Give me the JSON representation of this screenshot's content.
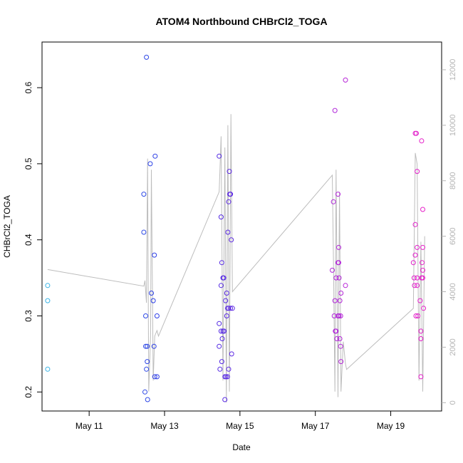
{
  "chart_data": {
    "type": "scatter",
    "title": "ATOM4 Northbound CHBrCl2_TOGA",
    "xlabel": "Date",
    "ylabel": "CHBrCl2_TOGA",
    "xlim": [
      9.75,
      20.35
    ],
    "ylim": [
      0.175,
      0.66
    ],
    "y2lim": [
      -300,
      13000
    ],
    "x_ticks": [
      {
        "value": 11,
        "label": "May 11"
      },
      {
        "value": 13,
        "label": "May 13"
      },
      {
        "value": 15,
        "label": "May 15"
      },
      {
        "value": 17,
        "label": "May 17"
      },
      {
        "value": 19,
        "label": "May 19"
      }
    ],
    "y_ticks": [
      {
        "value": 0.2,
        "label": "0.2"
      },
      {
        "value": 0.3,
        "label": "0.3"
      },
      {
        "value": 0.4,
        "label": "0.4"
      },
      {
        "value": 0.5,
        "label": "0.5"
      },
      {
        "value": 0.6,
        "label": "0.6"
      }
    ],
    "y2_ticks": [
      {
        "value": 0,
        "label": "0"
      },
      {
        "value": 2000,
        "label": "2000"
      },
      {
        "value": 4000,
        "label": "4000"
      },
      {
        "value": 6000,
        "label": "6000"
      },
      {
        "value": 8000,
        "label": "8000"
      },
      {
        "value": 10000,
        "label": "10000"
      },
      {
        "value": 12000,
        "label": "12000"
      }
    ],
    "colors": {
      "start": "#3ab4e6",
      "mid": "#2a2ae6",
      "late": "#9a2ae0",
      "end": "#e61ec8",
      "altitude_line": "#bdbdbd",
      "axis": "#000000",
      "right_axis": "#b3b3b3"
    },
    "points": [
      {
        "x": 9.9,
        "y": 0.34
      },
      {
        "x": 9.9,
        "y": 0.32
      },
      {
        "x": 9.9,
        "y": 0.23
      },
      {
        "x": 12.45,
        "y": 0.46
      },
      {
        "x": 12.45,
        "y": 0.41
      },
      {
        "x": 12.48,
        "y": 0.2
      },
      {
        "x": 12.5,
        "y": 0.3
      },
      {
        "x": 12.5,
        "y": 0.26
      },
      {
        "x": 12.52,
        "y": 0.23
      },
      {
        "x": 12.52,
        "y": 0.64
      },
      {
        "x": 12.54,
        "y": 0.26
      },
      {
        "x": 12.54,
        "y": 0.24
      },
      {
        "x": 12.55,
        "y": 0.19
      },
      {
        "x": 12.62,
        "y": 0.5
      },
      {
        "x": 12.65,
        "y": 0.33
      },
      {
        "x": 12.7,
        "y": 0.32
      },
      {
        "x": 12.72,
        "y": 0.26
      },
      {
        "x": 12.73,
        "y": 0.38
      },
      {
        "x": 12.75,
        "y": 0.51
      },
      {
        "x": 12.74,
        "y": 0.22
      },
      {
        "x": 12.8,
        "y": 0.22
      },
      {
        "x": 12.8,
        "y": 0.3
      },
      {
        "x": 14.45,
        "y": 0.51
      },
      {
        "x": 14.45,
        "y": 0.29
      },
      {
        "x": 14.45,
        "y": 0.26
      },
      {
        "x": 14.47,
        "y": 0.23
      },
      {
        "x": 14.5,
        "y": 0.43
      },
      {
        "x": 14.5,
        "y": 0.34
      },
      {
        "x": 14.5,
        "y": 0.28
      },
      {
        "x": 14.52,
        "y": 0.24
      },
      {
        "x": 14.52,
        "y": 0.37
      },
      {
        "x": 14.53,
        "y": 0.27
      },
      {
        "x": 14.55,
        "y": 0.35
      },
      {
        "x": 14.55,
        "y": 0.28
      },
      {
        "x": 14.57,
        "y": 0.35
      },
      {
        "x": 14.58,
        "y": 0.28
      },
      {
        "x": 14.6,
        "y": 0.22
      },
      {
        "x": 14.6,
        "y": 0.19
      },
      {
        "x": 14.62,
        "y": 0.32
      },
      {
        "x": 14.63,
        "y": 0.22
      },
      {
        "x": 14.65,
        "y": 0.33
      },
      {
        "x": 14.65,
        "y": 0.3
      },
      {
        "x": 14.67,
        "y": 0.31
      },
      {
        "x": 14.67,
        "y": 0.22
      },
      {
        "x": 14.68,
        "y": 0.41
      },
      {
        "x": 14.7,
        "y": 0.45
      },
      {
        "x": 14.7,
        "y": 0.31
      },
      {
        "x": 14.7,
        "y": 0.23
      },
      {
        "x": 14.72,
        "y": 0.49
      },
      {
        "x": 14.73,
        "y": 0.46
      },
      {
        "x": 14.75,
        "y": 0.46
      },
      {
        "x": 14.75,
        "y": 0.31
      },
      {
        "x": 14.77,
        "y": 0.4
      },
      {
        "x": 14.78,
        "y": 0.25
      },
      {
        "x": 14.8,
        "y": 0.31
      },
      {
        "x": 17.45,
        "y": 0.36
      },
      {
        "x": 17.48,
        "y": 0.45
      },
      {
        "x": 17.5,
        "y": 0.3
      },
      {
        "x": 17.52,
        "y": 0.57
      },
      {
        "x": 17.52,
        "y": 0.32
      },
      {
        "x": 17.53,
        "y": 0.28
      },
      {
        "x": 17.55,
        "y": 0.35
      },
      {
        "x": 17.55,
        "y": 0.28
      },
      {
        "x": 17.57,
        "y": 0.27
      },
      {
        "x": 17.6,
        "y": 0.46
      },
      {
        "x": 17.6,
        "y": 0.37
      },
      {
        "x": 17.6,
        "y": 0.3
      },
      {
        "x": 17.62,
        "y": 0.39
      },
      {
        "x": 17.62,
        "y": 0.37
      },
      {
        "x": 17.63,
        "y": 0.35
      },
      {
        "x": 17.63,
        "y": 0.3
      },
      {
        "x": 17.65,
        "y": 0.27
      },
      {
        "x": 17.65,
        "y": 0.32
      },
      {
        "x": 17.67,
        "y": 0.3
      },
      {
        "x": 17.67,
        "y": 0.26
      },
      {
        "x": 17.68,
        "y": 0.33
      },
      {
        "x": 17.68,
        "y": 0.24
      },
      {
        "x": 17.8,
        "y": 0.61
      },
      {
        "x": 17.8,
        "y": 0.34
      },
      {
        "x": 19.6,
        "y": 0.37
      },
      {
        "x": 19.62,
        "y": 0.35
      },
      {
        "x": 19.63,
        "y": 0.34
      },
      {
        "x": 19.65,
        "y": 0.54
      },
      {
        "x": 19.65,
        "y": 0.42
      },
      {
        "x": 19.65,
        "y": 0.38
      },
      {
        "x": 19.67,
        "y": 0.3
      },
      {
        "x": 19.68,
        "y": 0.54
      },
      {
        "x": 19.7,
        "y": 0.49
      },
      {
        "x": 19.7,
        "y": 0.39
      },
      {
        "x": 19.7,
        "y": 0.35
      },
      {
        "x": 19.7,
        "y": 0.34
      },
      {
        "x": 19.72,
        "y": 0.3
      },
      {
        "x": 19.78,
        "y": 0.32
      },
      {
        "x": 19.8,
        "y": 0.28
      },
      {
        "x": 19.8,
        "y": 0.27
      },
      {
        "x": 19.8,
        "y": 0.22
      },
      {
        "x": 19.82,
        "y": 0.53
      },
      {
        "x": 19.82,
        "y": 0.35
      },
      {
        "x": 19.83,
        "y": 0.37
      },
      {
        "x": 19.85,
        "y": 0.44
      },
      {
        "x": 19.85,
        "y": 0.39
      },
      {
        "x": 19.85,
        "y": 0.36
      },
      {
        "x": 19.85,
        "y": 0.35
      },
      {
        "x": 19.87,
        "y": 0.31
      }
    ],
    "altitude_line": [
      {
        "x": 9.9,
        "y2": 4800
      },
      {
        "x": 12.45,
        "y2": 4200
      },
      {
        "x": 12.48,
        "y2": 4400
      },
      {
        "x": 12.52,
        "y2": 3600
      },
      {
        "x": 12.55,
        "y2": 8800
      },
      {
        "x": 12.58,
        "y2": 400
      },
      {
        "x": 12.63,
        "y2": 2400
      },
      {
        "x": 12.65,
        "y2": 8400
      },
      {
        "x": 12.7,
        "y2": 800
      },
      {
        "x": 12.74,
        "y2": 2400
      },
      {
        "x": 12.8,
        "y2": 2600
      },
      {
        "x": 12.84,
        "y2": 2400
      },
      {
        "x": 14.45,
        "y2": 7600
      },
      {
        "x": 14.5,
        "y2": 9600
      },
      {
        "x": 14.55,
        "y2": 800
      },
      {
        "x": 14.6,
        "y2": 9200
      },
      {
        "x": 14.64,
        "y2": 0
      },
      {
        "x": 14.68,
        "y2": 10000
      },
      {
        "x": 14.72,
        "y2": 400
      },
      {
        "x": 14.76,
        "y2": 10400
      },
      {
        "x": 14.8,
        "y2": 4000
      },
      {
        "x": 17.45,
        "y2": 8200
      },
      {
        "x": 17.48,
        "y2": 5200
      },
      {
        "x": 17.52,
        "y2": 400
      },
      {
        "x": 17.55,
        "y2": 8400
      },
      {
        "x": 17.6,
        "y2": 200
      },
      {
        "x": 17.64,
        "y2": 7600
      },
      {
        "x": 17.68,
        "y2": 400
      },
      {
        "x": 17.74,
        "y2": 2200
      },
      {
        "x": 17.8,
        "y2": 1400
      },
      {
        "x": 17.83,
        "y2": 1200
      },
      {
        "x": 19.6,
        "y2": 3400
      },
      {
        "x": 19.65,
        "y2": 9000
      },
      {
        "x": 19.7,
        "y2": 8600
      },
      {
        "x": 19.75,
        "y2": 800
      },
      {
        "x": 19.8,
        "y2": 5800
      },
      {
        "x": 19.85,
        "y2": 400
      },
      {
        "x": 19.9,
        "y2": 6000
      }
    ]
  }
}
